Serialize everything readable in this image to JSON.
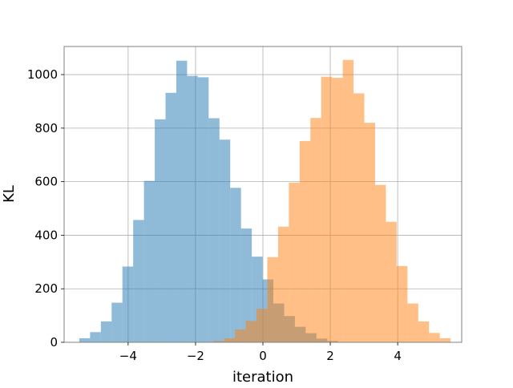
{
  "chart_data": {
    "type": "bar",
    "subtype": "histogram",
    "title": "",
    "xlabel": "iteration",
    "ylabel": "KL",
    "xlim": [
      -5.9,
      5.9
    ],
    "ylim": [
      0,
      1105
    ],
    "xticks": [
      -4,
      -2,
      0,
      2,
      4
    ],
    "xtick_labels": [
      "−4",
      "−2",
      "0",
      "2",
      "4"
    ],
    "yticks": [
      0,
      200,
      400,
      600,
      800,
      1000
    ],
    "ytick_labels": [
      "0",
      "200",
      "400",
      "600",
      "800",
      "1000"
    ],
    "grid": true,
    "legend": false,
    "series": [
      {
        "color": "#1f77b4",
        "alpha": 0.5,
        "bins": [
          [
            -5.45,
            -5.13,
            15
          ],
          [
            -5.13,
            -4.81,
            38
          ],
          [
            -4.81,
            -4.49,
            78
          ],
          [
            -4.49,
            -4.17,
            148
          ],
          [
            -4.17,
            -3.85,
            283
          ],
          [
            -3.85,
            -3.53,
            457
          ],
          [
            -3.53,
            -3.21,
            603
          ],
          [
            -3.21,
            -2.89,
            833
          ],
          [
            -2.89,
            -2.57,
            932
          ],
          [
            -2.57,
            -2.25,
            1052
          ],
          [
            -2.25,
            -1.93,
            995
          ],
          [
            -1.93,
            -1.61,
            990
          ],
          [
            -1.61,
            -1.29,
            837
          ],
          [
            -1.29,
            -0.97,
            757
          ],
          [
            -0.97,
            -0.65,
            577
          ],
          [
            -0.65,
            -0.33,
            425
          ],
          [
            -0.33,
            -0.01,
            320
          ],
          [
            -0.01,
            0.31,
            235
          ],
          [
            0.31,
            0.63,
            145
          ],
          [
            0.63,
            0.95,
            98
          ],
          [
            0.95,
            1.27,
            58
          ],
          [
            1.27,
            1.59,
            34
          ],
          [
            1.59,
            1.91,
            14
          ],
          [
            1.91,
            2.23,
            5
          ]
        ]
      },
      {
        "color": "#ff7f0e",
        "alpha": 0.5,
        "bins": [
          [
            -1.47,
            -1.15,
            5
          ],
          [
            -1.15,
            -0.83,
            15
          ],
          [
            -0.83,
            -0.51,
            48
          ],
          [
            -0.51,
            -0.19,
            80
          ],
          [
            -0.19,
            0.13,
            125
          ],
          [
            0.13,
            0.45,
            318
          ],
          [
            0.45,
            0.77,
            432
          ],
          [
            0.77,
            1.09,
            596
          ],
          [
            1.09,
            1.41,
            752
          ],
          [
            1.41,
            1.73,
            838
          ],
          [
            1.73,
            2.05,
            992
          ],
          [
            2.05,
            2.37,
            988
          ],
          [
            2.37,
            2.69,
            1055
          ],
          [
            2.69,
            3.01,
            930
          ],
          [
            3.01,
            3.33,
            820
          ],
          [
            3.33,
            3.65,
            588
          ],
          [
            3.65,
            3.97,
            450
          ],
          [
            3.97,
            4.29,
            285
          ],
          [
            4.29,
            4.61,
            145
          ],
          [
            4.61,
            4.93,
            78
          ],
          [
            4.93,
            5.25,
            35
          ],
          [
            5.25,
            5.57,
            15
          ]
        ]
      }
    ]
  }
}
